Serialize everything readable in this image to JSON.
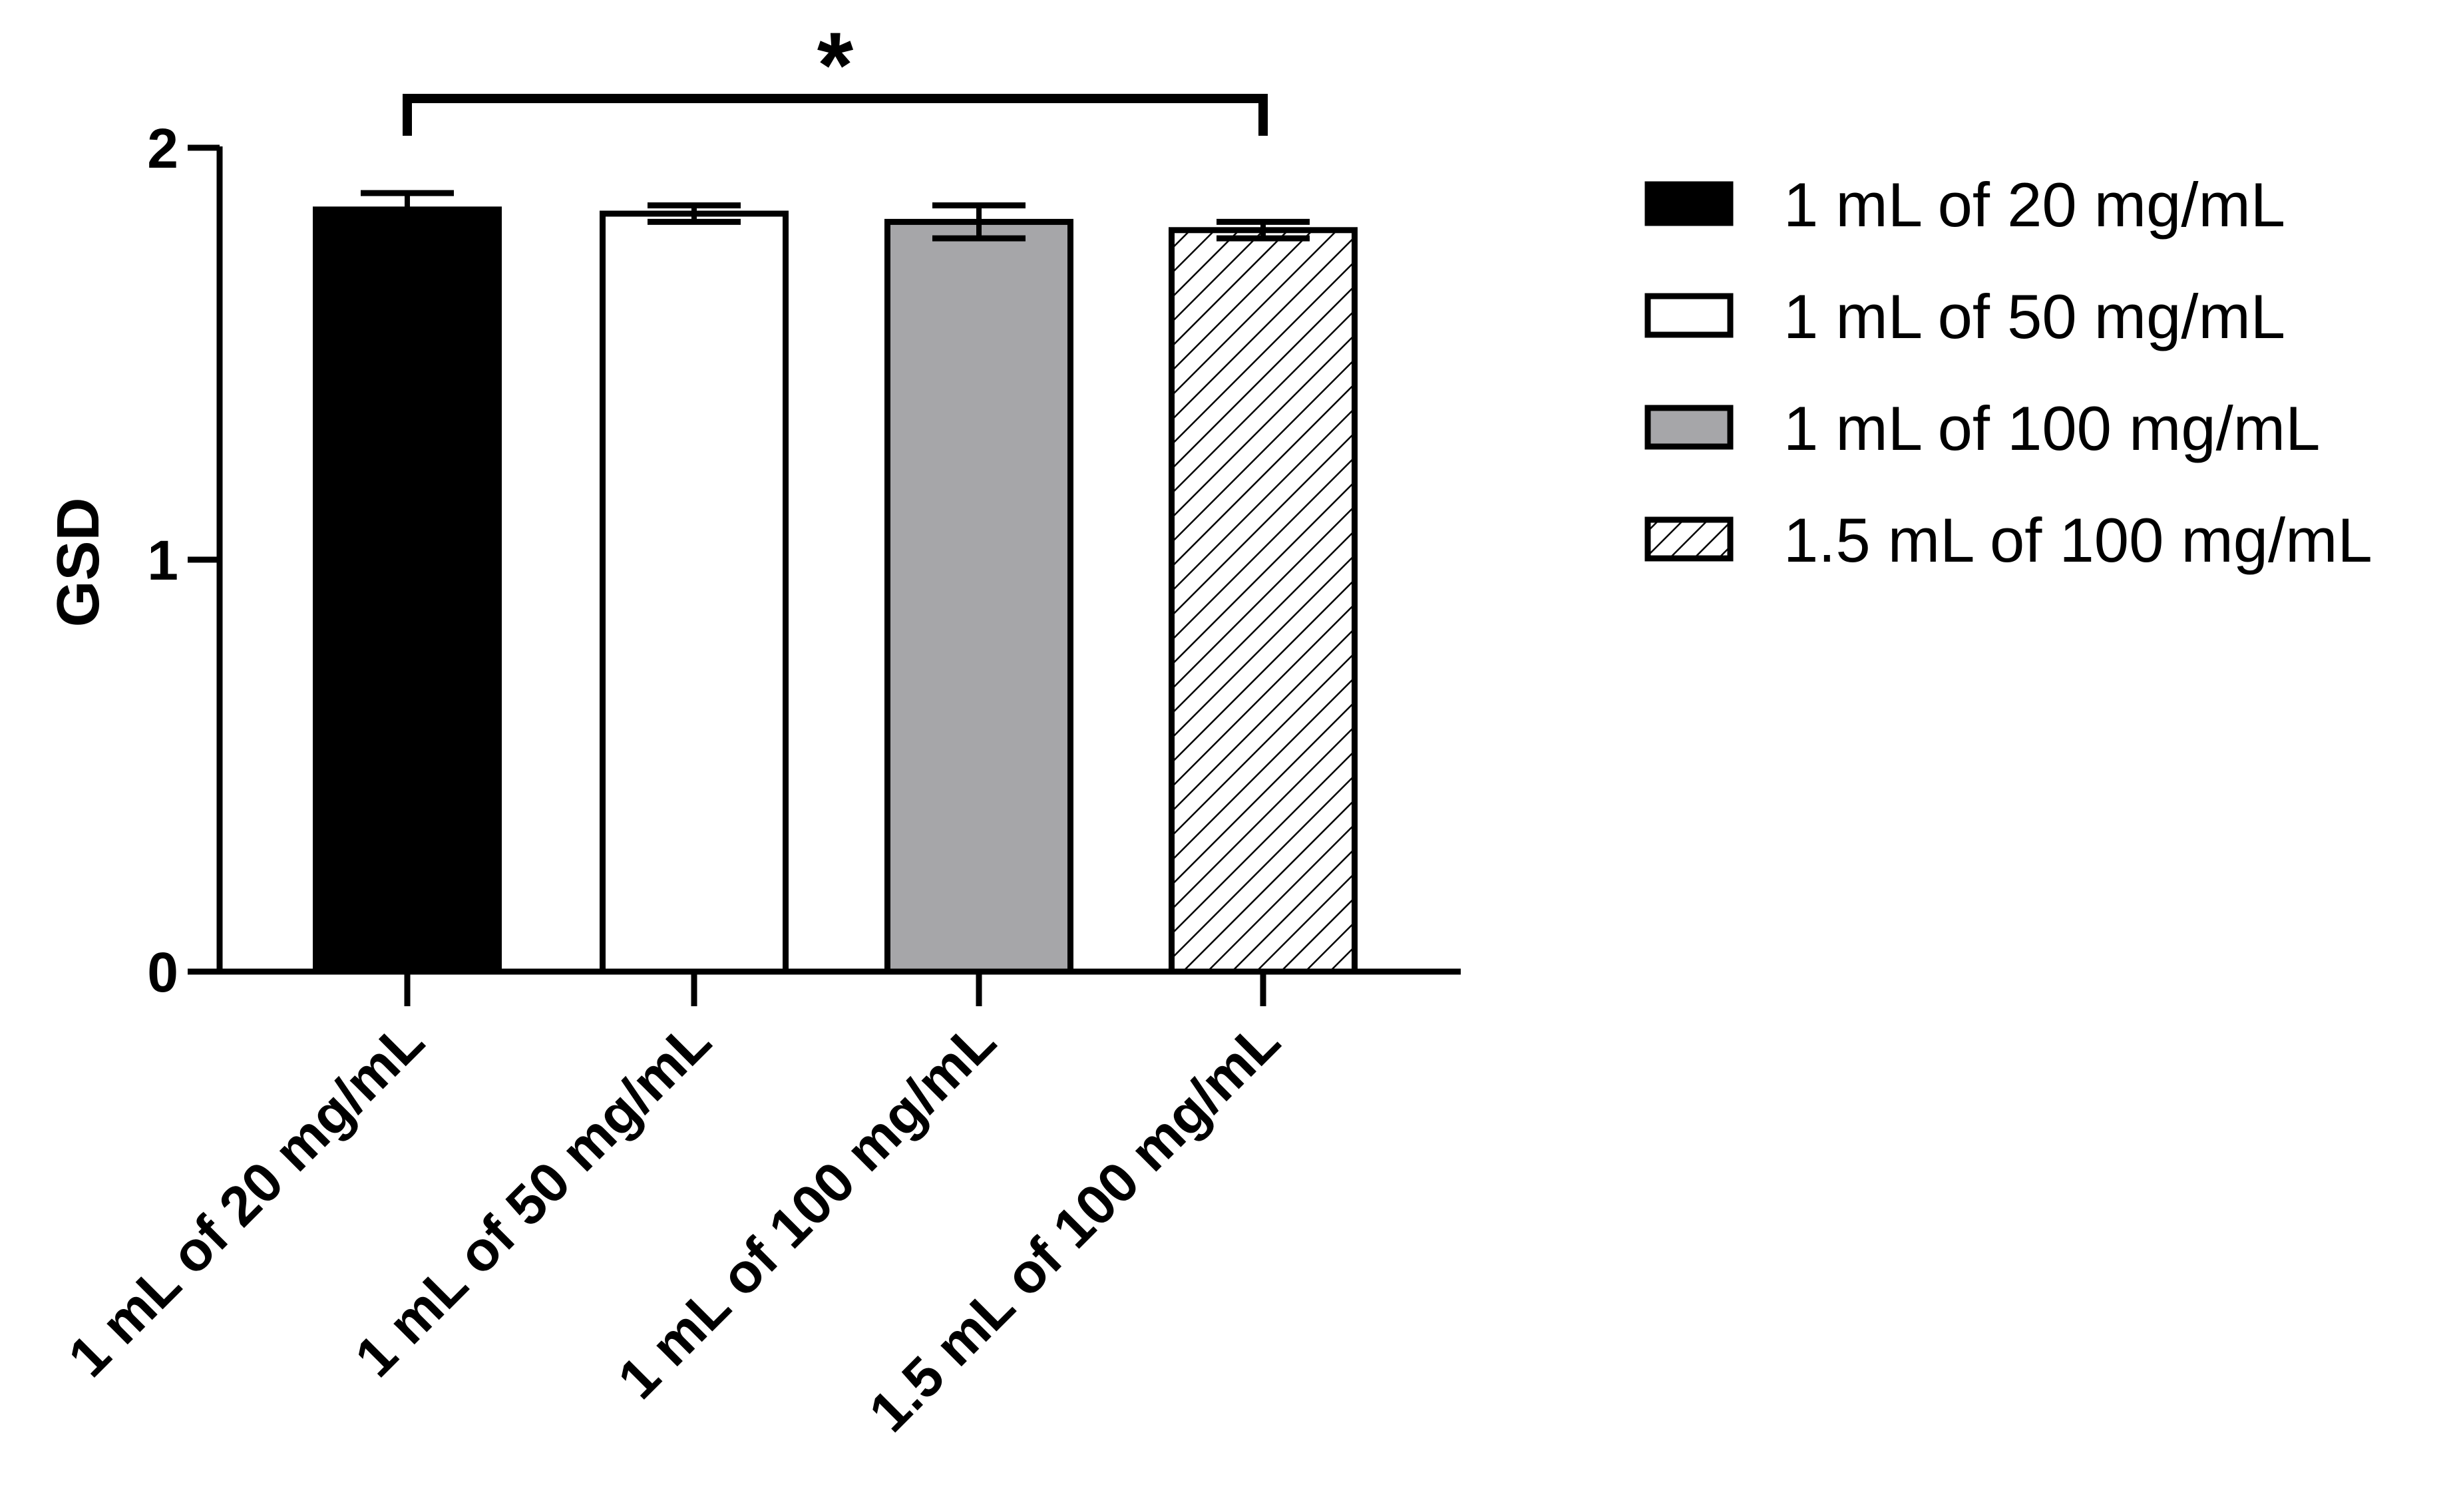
{
  "chart_data": {
    "type": "bar",
    "title": "",
    "xlabel": "",
    "ylabel": "GSD",
    "ylim": [
      0,
      2
    ],
    "yticks": [
      0,
      1,
      2
    ],
    "grid": false,
    "legend_position": "right",
    "categories": [
      "1 mL of 20 mg/mL",
      "1 mL of 50 mg/mL",
      "1 mL of 100 mg/mL",
      "1.5 mL of 100 mg/mL"
    ],
    "values": [
      1.85,
      1.84,
      1.82,
      1.8
    ],
    "errors": [
      0.04,
      0.02,
      0.04,
      0.02
    ],
    "fills": [
      "#000000",
      "#ffffff",
      "#a6a6a9",
      "hatch"
    ],
    "legend": [
      "1 mL of 20 mg/mL",
      "1 mL of 50 mg/mL",
      "1 mL of 100 mg/mL",
      "1.5 mL of 100 mg/mL"
    ],
    "significance": {
      "from": 0,
      "to": 3,
      "label": "*"
    }
  }
}
